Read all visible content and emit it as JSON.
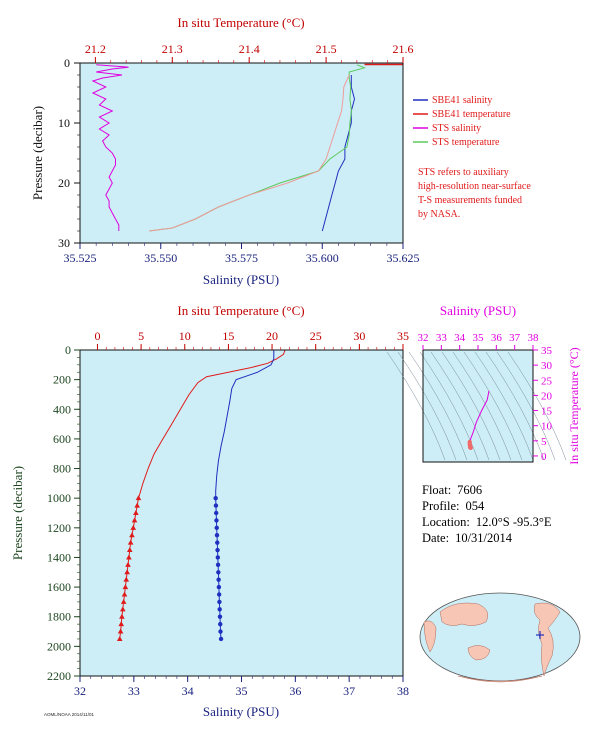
{
  "colors": {
    "plot_bg": "#cdeef7",
    "blue": "#1f2fbf",
    "red": "#e01b1b",
    "magenta": "#e000e0",
    "green": "#5cc85c",
    "salmon": "#f09a9a",
    "axis_blue": "#1a237e",
    "axis_red": "#c00000",
    "axis_green": "#1e4620"
  },
  "legend": {
    "items": [
      {
        "label": "SBE41 salinity",
        "color": "#1f2fbf"
      },
      {
        "label": "SBE41 temperature",
        "color": "#e01b1b"
      },
      {
        "label": "STS salinity",
        "color": "#e000e0"
      },
      {
        "label": "STS temperature",
        "color": "#5cc85c"
      }
    ],
    "note": [
      "STS refers to auxiliary",
      "high-resolution near-surface",
      "T-S measurements funded",
      "by NASA."
    ]
  },
  "info": {
    "float_label": "Float:",
    "float_value": "7606",
    "profile_label": "Profile:",
    "profile_value": "054",
    "location_label": "Location:",
    "location_value": "12.0°S  -95.3°E",
    "date_label": "Date:",
    "date_value": "10/31/2014"
  },
  "footer": "AOML/NOAA 2014/11/01",
  "chart_data": [
    {
      "type": "line",
      "title": "",
      "x_top_label": "In situ Temperature (°C)",
      "x_top_ticks": [
        "21.2",
        "21.3",
        "21.4",
        "21.5",
        "21.6"
      ],
      "x_top_range": [
        21.18,
        21.6
      ],
      "x_bottom_label": "Salinity (PSU)",
      "x_bottom_ticks": [
        "35.525",
        "35.550",
        "35.575",
        "35.600",
        "35.625"
      ],
      "x_bottom_range": [
        35.525,
        35.625
      ],
      "ylabel": "Pressure (decibar)",
      "y_ticks": [
        "0",
        "10",
        "20",
        "30"
      ],
      "y_range": [
        0,
        30
      ],
      "grid": false,
      "series": [
        {
          "name": "SBE41 salinity",
          "axis": "bottom",
          "color": "#1f2fbf",
          "points": [
            [
              35.609,
              2
            ],
            [
              35.609,
              4
            ],
            [
              35.61,
              6
            ],
            [
              35.609,
              8
            ],
            [
              35.609,
              10
            ],
            [
              35.608,
              12
            ],
            [
              35.607,
              14
            ],
            [
              35.607,
              16
            ],
            [
              35.605,
              18
            ],
            [
              35.604,
              20
            ],
            [
              35.603,
              22
            ],
            [
              35.602,
              24
            ],
            [
              35.601,
              26
            ],
            [
              35.6,
              28
            ]
          ]
        },
        {
          "name": "SBE41 temperature",
          "axis": "top",
          "color": "#e01b1b",
          "points": [
            [
              21.6,
              0
            ]
          ]
        },
        {
          "name": "STS salinity",
          "axis": "bottom",
          "color": "#e000e0",
          "points": [
            [
              35.53,
              0.3
            ],
            [
              35.54,
              0.7
            ],
            [
              35.535,
              1.0
            ],
            [
              35.53,
              1.5
            ],
            [
              35.538,
              2.0
            ],
            [
              35.532,
              2.5
            ],
            [
              35.529,
              3.0
            ],
            [
              35.533,
              4.0
            ],
            [
              35.529,
              5.0
            ],
            [
              35.533,
              6.0
            ],
            [
              35.531,
              7.0
            ],
            [
              35.535,
              8.0
            ],
            [
              35.531,
              9.0
            ],
            [
              35.534,
              10.0
            ],
            [
              35.531,
              11.0
            ],
            [
              35.534,
              12.0
            ],
            [
              35.532,
              13.0
            ],
            [
              35.533,
              14.0
            ],
            [
              35.535,
              15.0
            ],
            [
              35.536,
              16.0
            ],
            [
              35.536,
              17.0
            ],
            [
              35.535,
              18.0
            ],
            [
              35.534,
              19.0
            ],
            [
              35.535,
              20.0
            ],
            [
              35.534,
              21.0
            ],
            [
              35.533,
              22.0
            ],
            [
              35.534,
              23.0
            ],
            [
              35.534,
              24.0
            ],
            [
              35.535,
              25.0
            ],
            [
              35.536,
              26.0
            ],
            [
              35.537,
              27.0
            ],
            [
              35.537,
              28.0
            ]
          ]
        },
        {
          "name": "STS temperature",
          "axis": "top",
          "color": "#5cc85c",
          "points": [
            [
              21.54,
              0.3
            ],
            [
              21.55,
              0.8
            ],
            [
              21.53,
              1.5
            ],
            [
              21.53,
              2.5
            ],
            [
              21.532,
              4
            ],
            [
              21.531,
              6
            ],
            [
              21.533,
              8
            ],
            [
              21.531,
              10
            ],
            [
              21.53,
              12
            ],
            [
              21.527,
              14
            ],
            [
              21.505,
              16
            ],
            [
              21.49,
              18
            ],
            [
              21.44,
              20
            ],
            [
              21.4,
              22
            ],
            [
              21.36,
              24
            ],
            [
              21.33,
              26
            ],
            [
              21.3,
              27.5
            ],
            [
              21.27,
              28
            ]
          ]
        },
        {
          "name": "",
          "axis": "top",
          "color": "#f09a9a",
          "points": [
            [
              21.53,
              2
            ],
            [
              21.523,
              4
            ],
            [
              21.522,
              6
            ],
            [
              21.52,
              8
            ],
            [
              21.515,
              10
            ],
            [
              21.51,
              12
            ],
            [
              21.505,
              14
            ],
            [
              21.5,
              16
            ],
            [
              21.49,
              18
            ],
            [
              21.45,
              20
            ],
            [
              21.4,
              22
            ],
            [
              21.36,
              24
            ],
            [
              21.33,
              26
            ],
            [
              21.3,
              27.5
            ],
            [
              21.27,
              28
            ]
          ]
        }
      ]
    },
    {
      "type": "line",
      "title": "",
      "x_top_label": "In situ Temperature (°C)",
      "x_top_ticks": [
        "0",
        "5",
        "10",
        "15",
        "20",
        "25",
        "30",
        "35"
      ],
      "x_top_range": [
        -2,
        35
      ],
      "x_bottom_label": "Salinity (PSU)",
      "x_bottom_ticks": [
        "32",
        "33",
        "34",
        "35",
        "36",
        "37",
        "38"
      ],
      "x_bottom_range": [
        32,
        38
      ],
      "ylabel": "Pressure (decibar)",
      "y_ticks": [
        "0",
        "200",
        "400",
        "600",
        "800",
        "1000",
        "1200",
        "1400",
        "1600",
        "1800",
        "2000",
        "2200"
      ],
      "y_range": [
        0,
        2200
      ],
      "grid": false,
      "series": [
        {
          "name": "Temperature",
          "axis": "top",
          "color": "#e01b1b",
          "points": [
            [
              21.5,
              0
            ],
            [
              21.3,
              30
            ],
            [
              20.5,
              60
            ],
            [
              19.5,
              90
            ],
            [
              17.5,
              120
            ],
            [
              15.0,
              150
            ],
            [
              12.5,
              180
            ],
            [
              11.5,
              220
            ],
            [
              10.5,
              300
            ],
            [
              9.5,
              400
            ],
            [
              8.5,
              500
            ],
            [
              7.5,
              600
            ],
            [
              6.5,
              700
            ],
            [
              5.8,
              800
            ],
            [
              5.2,
              900
            ],
            [
              4.7,
              1000
            ],
            [
              4.4,
              1100
            ],
            [
              4.1,
              1200
            ],
            [
              3.8,
              1300
            ],
            [
              3.6,
              1400
            ],
            [
              3.4,
              1500
            ],
            [
              3.2,
              1600
            ],
            [
              3.0,
              1700
            ],
            [
              2.8,
              1800
            ],
            [
              2.65,
              1900
            ],
            [
              2.55,
              1950
            ]
          ]
        },
        {
          "name": "Salinity",
          "axis": "bottom",
          "color": "#1f2fbf",
          "points": [
            [
              35.6,
              0
            ],
            [
              35.6,
              60
            ],
            [
              35.55,
              100
            ],
            [
              35.3,
              150
            ],
            [
              34.9,
              200
            ],
            [
              34.82,
              260
            ],
            [
              34.78,
              350
            ],
            [
              34.73,
              450
            ],
            [
              34.68,
              550
            ],
            [
              34.62,
              650
            ],
            [
              34.57,
              750
            ],
            [
              34.54,
              850
            ],
            [
              34.52,
              950
            ],
            [
              34.52,
              1000
            ],
            [
              34.53,
              1100
            ],
            [
              34.54,
              1200
            ],
            [
              34.55,
              1300
            ],
            [
              34.56,
              1400
            ],
            [
              34.57,
              1500
            ],
            [
              34.58,
              1600
            ],
            [
              34.59,
              1700
            ],
            [
              34.6,
              1800
            ],
            [
              34.61,
              1900
            ],
            [
              34.62,
              1950
            ]
          ]
        }
      ]
    },
    {
      "type": "line",
      "title": "",
      "x_top_label": "Salinity (PSU)",
      "x_top_ticks": [
        "32",
        "33",
        "34",
        "35",
        "36",
        "37",
        "38"
      ],
      "x_range": [
        32,
        38
      ],
      "ylabel_right": "In situ Temperature (°C)",
      "y_ticks": [
        "0",
        "5",
        "10",
        "15",
        "20",
        "25",
        "30",
        "35"
      ],
      "y_range": [
        -2,
        35
      ],
      "grid": false,
      "series": [
        {
          "name": "T-S",
          "color": "#e000e0",
          "points": [
            [
              35.6,
              21.5
            ],
            [
              35.5,
              18.5
            ],
            [
              35.2,
              15
            ],
            [
              34.9,
              11
            ],
            [
              34.75,
              8
            ],
            [
              34.62,
              6
            ],
            [
              34.55,
              4.5
            ],
            [
              34.55,
              3.5
            ],
            [
              34.6,
              2.6
            ]
          ]
        }
      ]
    }
  ]
}
